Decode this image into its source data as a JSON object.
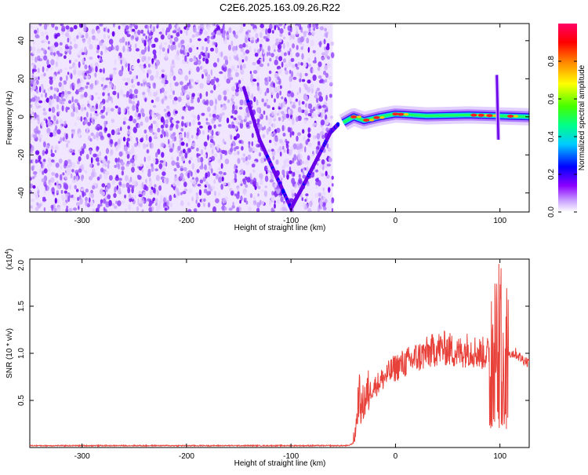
{
  "title": "C2E6.2025.163.09.26.R22",
  "chart_data": [
    {
      "type": "heatmap",
      "xlabel": "Height of straight line (km)",
      "ylabel": "Frequency (Hz)",
      "xlim": [
        -350,
        128
      ],
      "ylim": [
        -50,
        49
      ],
      "xticks": [
        -300,
        -200,
        -100,
        0,
        100
      ],
      "yticks": [
        -40,
        -20,
        0,
        20,
        40
      ],
      "colorbar": {
        "label": "Normalized spectral amplitude",
        "range": [
          0,
          1
        ],
        "ticks": [
          "0.0",
          "0.2",
          "0.4",
          "0.6",
          "0.8"
        ],
        "tick_values": [
          0,
          0.2,
          0.4,
          0.6,
          0.8
        ],
        "colors": [
          "#ffffff",
          "#8c00ff",
          "#0000ff",
          "#00ffff",
          "#00ff00",
          "#ffff00",
          "#ff7f00",
          "#ff0000",
          "#ff0066"
        ]
      },
      "noise_region_x": [
        -350,
        -60
      ],
      "features": {
        "v_trace_left": [
          [
            -145,
            15
          ],
          [
            -130,
            -12
          ],
          [
            -115,
            -30
          ],
          [
            -100,
            -48
          ]
        ],
        "v_trace_right": [
          [
            -100,
            -48
          ],
          [
            -90,
            -38
          ],
          [
            -75,
            -22
          ],
          [
            -62,
            -8
          ],
          [
            -55,
            -4
          ]
        ],
        "band_center": [
          [
            -50,
            -3
          ],
          [
            -40,
            0
          ],
          [
            -30,
            -2
          ],
          [
            -15,
            0
          ],
          [
            0,
            1.5
          ],
          [
            30,
            0.5
          ],
          [
            70,
            1
          ],
          [
            100,
            0.5
          ],
          [
            128,
            0
          ]
        ],
        "spike_x": 97,
        "spike_range": [
          -12,
          22
        ]
      }
    },
    {
      "type": "line",
      "xlabel": "Height of straight line (km)",
      "ylabel": "SNR (10 * v/v)",
      "scale_label": "(x10^4)",
      "xlim": [
        -350,
        128
      ],
      "ylim": [
        0,
        2.0
      ],
      "xticks": [
        -300,
        -200,
        -100,
        0,
        100
      ],
      "yticks": [
        0.5,
        1.0,
        1.5,
        2.0
      ],
      "ytick_labels": [
        "0.5",
        "1.0",
        "1.5",
        "2.0"
      ],
      "series": [
        {
          "color": "#e8413a",
          "x": [
            -350,
            -300,
            -250,
            -200,
            -150,
            -100,
            -60,
            -45,
            -40,
            -37,
            -35,
            -33,
            -30,
            -25,
            -20,
            -15,
            -10,
            -5,
            0,
            10,
            20,
            30,
            40,
            50,
            60,
            70,
            80,
            90,
            95,
            98,
            100,
            102,
            105,
            110,
            115,
            120,
            128
          ],
          "y": [
            0.02,
            0.02,
            0.02,
            0.02,
            0.02,
            0.02,
            0.02,
            0.02,
            0.05,
            0.3,
            0.6,
            0.4,
            0.5,
            0.6,
            0.65,
            0.7,
            0.75,
            0.8,
            0.85,
            0.9,
            0.95,
            1.0,
            1.05,
            1.05,
            1.0,
            1.05,
            1.0,
            1.0,
            1.05,
            0.8,
            1.1,
            0.9,
            1.05,
            1.0,
            1.0,
            0.95,
            0.9
          ]
        }
      ]
    }
  ]
}
